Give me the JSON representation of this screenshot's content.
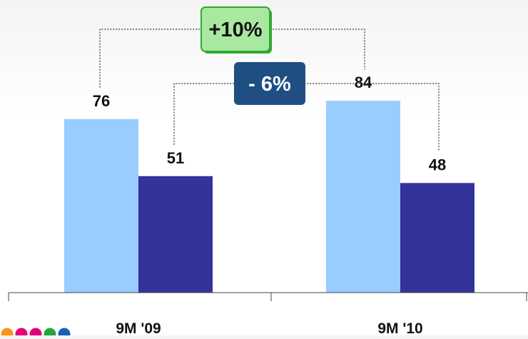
{
  "chart_data": {
    "type": "bar",
    "categories": [
      "9M '09",
      "9M '10"
    ],
    "series": [
      {
        "values": [
          76,
          84
        ],
        "color": "#99ccff"
      },
      {
        "values": [
          51,
          48
        ],
        "color": "#333399"
      }
    ],
    "ylim": [
      0,
      100
    ],
    "grid": false,
    "annotations": [
      {
        "label": "+10%",
        "from": [
          0,
          0
        ],
        "to": [
          1,
          0
        ],
        "style": "green-box"
      },
      {
        "label": "- 6%",
        "from": [
          0,
          1
        ],
        "to": [
          1,
          1
        ],
        "style": "navy-box"
      }
    ]
  },
  "colors": {
    "green_box_fill": "#a8e8a0",
    "green_box_border": "#2fa82f",
    "navy_box_fill": "#1f4e82",
    "logo_dots": [
      "#f7941d",
      "#e2007a",
      "#e2007a",
      "#2aa33a",
      "#1a5fb4"
    ]
  }
}
